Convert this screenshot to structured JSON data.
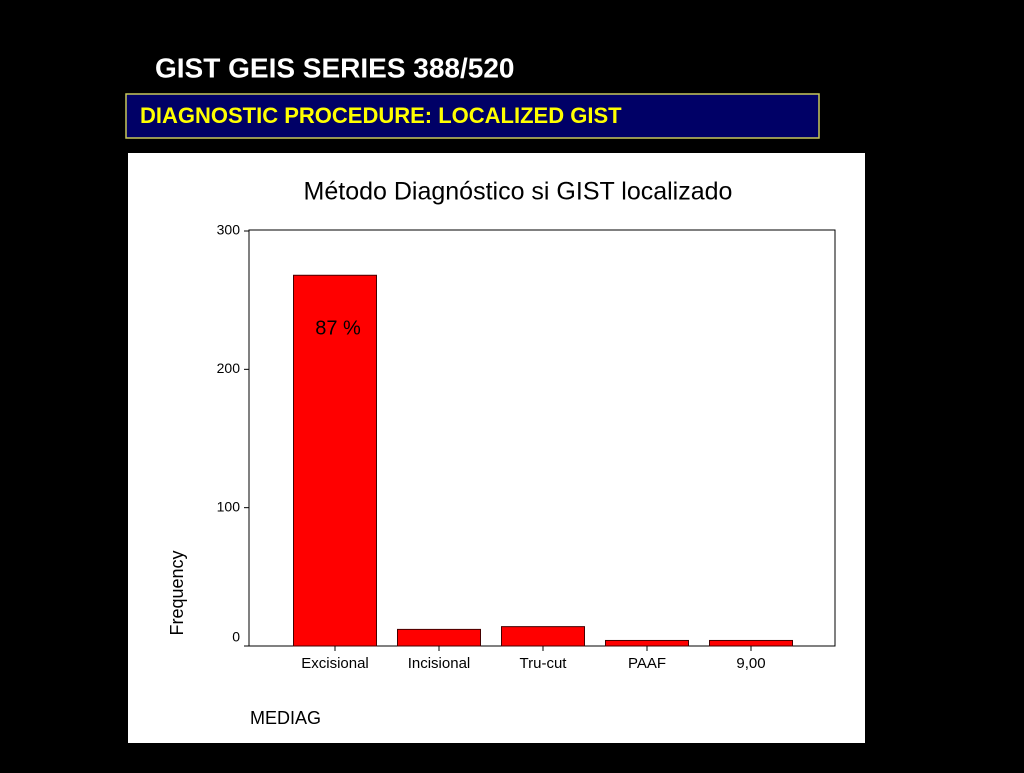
{
  "slide": {
    "title": "GIST GEIS SERIES 388/520",
    "subtitle": "DIAGNOSTIC PROCEDURE: LOCALIZED GIST"
  },
  "chart_data": {
    "type": "bar",
    "title": "Método Diagnóstico si GIST localizado",
    "x_label": "MEDIAG",
    "y_label": "Frequency",
    "categories": [
      "Excisional",
      "Incisional",
      "Tru-cut",
      "PAAF",
      "9,00"
    ],
    "values": [
      268,
      12,
      14,
      4,
      4
    ],
    "color": "#ff0000",
    "ylim": [
      0,
      300
    ],
    "yticks": [
      0,
      100,
      200,
      300
    ],
    "annotation": "87 %"
  }
}
